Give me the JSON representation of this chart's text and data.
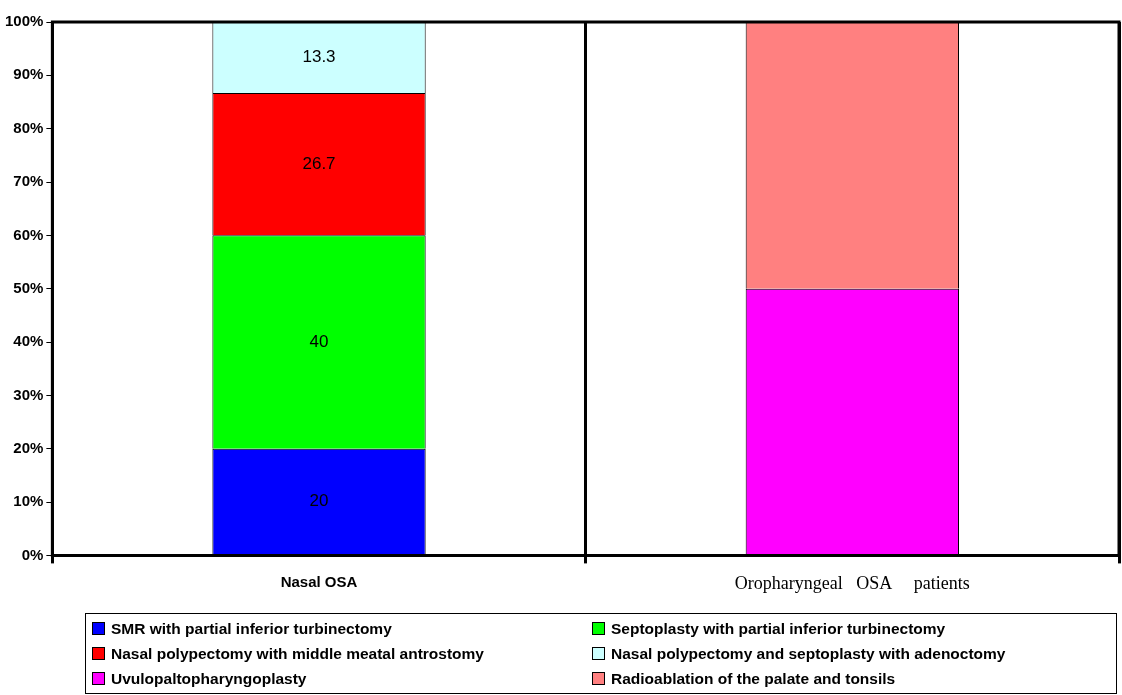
{
  "chart_data": {
    "type": "bar",
    "stacked": true,
    "categories": [
      "Nasal OSA",
      "Oropharyngeal   OSA     patients"
    ],
    "ylim": [
      0,
      100
    ],
    "yticks": [
      {
        "value": 0,
        "label": "0%"
      },
      {
        "value": 10,
        "label": "10%"
      },
      {
        "value": 20,
        "label": "20%"
      },
      {
        "value": 30,
        "label": "30%"
      },
      {
        "value": 40,
        "label": "40%"
      },
      {
        "value": 50,
        "label": "50%"
      },
      {
        "value": 60,
        "label": "60%"
      },
      {
        "value": 70,
        "label": "70%"
      },
      {
        "value": 80,
        "label": "80%"
      },
      {
        "value": 90,
        "label": "90%"
      },
      {
        "value": 100,
        "label": "100%"
      }
    ],
    "grid": "x",
    "legend": "bottom",
    "series": [
      {
        "name": "SMR with partial inferior turbinectomy",
        "color": "#0000ff",
        "values": [
          20,
          null
        ],
        "value_labels": [
          "20",
          null
        ]
      },
      {
        "name": "Septoplasty with partial inferior turbinectomy",
        "color": "#00ff00",
        "values": [
          40,
          null
        ],
        "value_labels": [
          "40",
          null
        ]
      },
      {
        "name": "Nasal polypectomy with middle meatal antrostomy",
        "color": "#ff0000",
        "values": [
          26.7,
          null
        ],
        "value_labels": [
          "26.7",
          null
        ]
      },
      {
        "name": "Nasal polypectomy and septoplasty with adenoctomy",
        "color": "#ccffff",
        "values": [
          13.3,
          null
        ],
        "value_labels": [
          "13.3",
          null
        ]
      },
      {
        "name": "Uvulopaltopharyngoplasty",
        "color": "#ff00ff",
        "values": [
          null,
          50
        ]
      },
      {
        "name": "Radioablation of the palate and tonsils",
        "color": "#ff8080",
        "values": [
          null,
          50
        ]
      }
    ]
  }
}
